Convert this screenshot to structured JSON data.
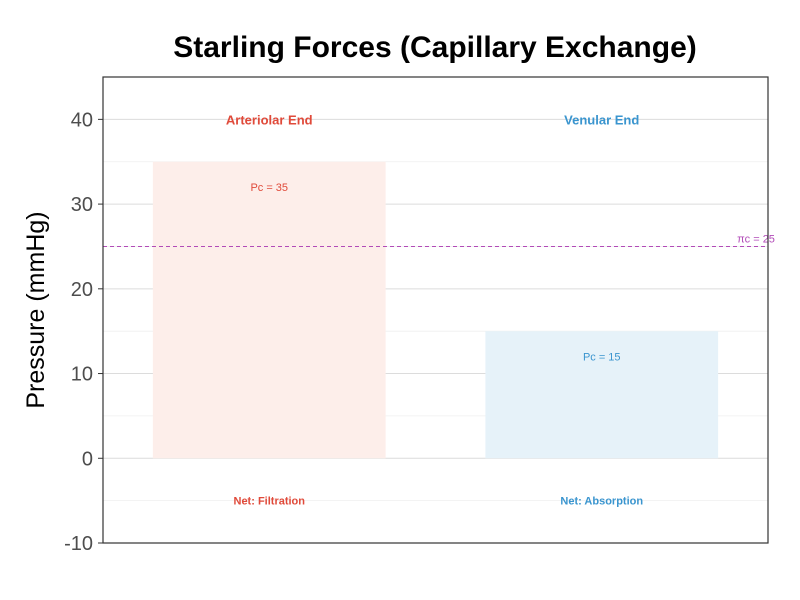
{
  "chart_data": {
    "type": "bar",
    "title": "Starling Forces (Capillary Exchange)",
    "ylabel": "Pressure (mmHg)",
    "xlabel": "",
    "ylim": [
      -10,
      45
    ],
    "yticks": [
      -10,
      0,
      10,
      20,
      30,
      40
    ],
    "grid": true,
    "categories": [
      "Arteriolar End",
      "Venular End"
    ],
    "values": [
      35,
      15
    ],
    "bar_labels": [
      "Pc = 35",
      "Pc = 15"
    ],
    "net_labels": [
      "Net: Filtration",
      "Net: Absorption"
    ],
    "reference_line": {
      "value": 25,
      "label": "πc = 25",
      "color": "#b24bb8"
    },
    "colors": {
      "arteriolar_text": "#e04a3a",
      "arteriolar_fill": "#fdeeea",
      "venular_text": "#3a95cf",
      "venular_fill": "#e6f2f9"
    }
  }
}
